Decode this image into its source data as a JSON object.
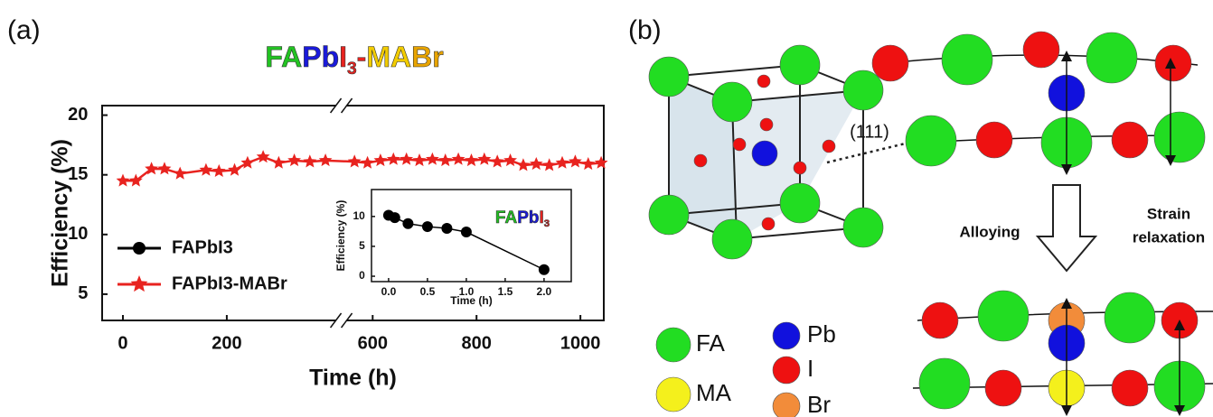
{
  "panel_labels": [
    "(a)",
    "(b)"
  ],
  "chart_data": [
    {
      "type": "line",
      "title": "FAPbI3-MABr",
      "x_label": "Time (h)",
      "y_label": "Efficiency (%)",
      "xlim": [
        -40,
        1045
      ],
      "x_break": [
        410,
        550
      ],
      "ylim": [
        2.8,
        20.8
      ],
      "xticks": [
        0,
        200,
        600,
        800,
        1000
      ],
      "yticks": [
        5,
        10,
        15,
        20
      ],
      "series": [
        {
          "name": "FAPbI3",
          "color": "#000000",
          "marker": "circle",
          "x": [],
          "values": []
        },
        {
          "name": "FAPbI3-MABr",
          "color": "#e8231f",
          "marker": "star",
          "x": [
            0,
            25,
            55,
            80,
            110,
            160,
            185,
            215,
            240,
            270,
            300,
            330,
            360,
            390,
            565,
            590,
            615,
            640,
            665,
            690,
            715,
            740,
            765,
            790,
            815,
            840,
            865,
            890,
            915,
            940,
            965,
            990,
            1015,
            1040
          ],
          "values": [
            14.5,
            14.5,
            15.5,
            15.5,
            15.1,
            15.4,
            15.3,
            15.4,
            16.0,
            16.5,
            16.0,
            16.2,
            16.1,
            16.2,
            16.1,
            16.0,
            16.2,
            16.3,
            16.3,
            16.2,
            16.3,
            16.2,
            16.3,
            16.2,
            16.3,
            16.1,
            16.2,
            15.8,
            15.9,
            15.8,
            16.0,
            16.1,
            15.9,
            16.0
          ]
        }
      ]
    },
    {
      "type": "line",
      "title": "FAPbI3",
      "x_label": "Time (h)",
      "y_label": "Efficiency (%)",
      "xlim": [
        -0.22,
        2.35
      ],
      "ylim": [
        -0.9,
        14.5
      ],
      "xticks": [
        {
          "value": 0,
          "label": "0.0"
        },
        0.5,
        {
          "value": 1,
          "label": "1.0"
        },
        1.5,
        {
          "value": 2,
          "label": "2.0"
        }
      ],
      "yticks": [
        0,
        5,
        10
      ],
      "series": [
        {
          "name": "FAPbI3",
          "color": "#000000",
          "marker": "circle",
          "x": [
            0,
            0.08,
            0.25,
            0.5,
            0.75,
            1.0,
            2.0
          ],
          "values": [
            10.2,
            9.8,
            8.8,
            8.3,
            8.0,
            7.4,
            1.1
          ]
        }
      ]
    }
  ],
  "diagram": {
    "plane_label": "(111)",
    "arrow_label": "Alloying",
    "side_label": [
      "Strain",
      "relaxation"
    ],
    "legend": [
      "FA",
      "MA",
      "Pb",
      "I",
      "Br"
    ]
  }
}
